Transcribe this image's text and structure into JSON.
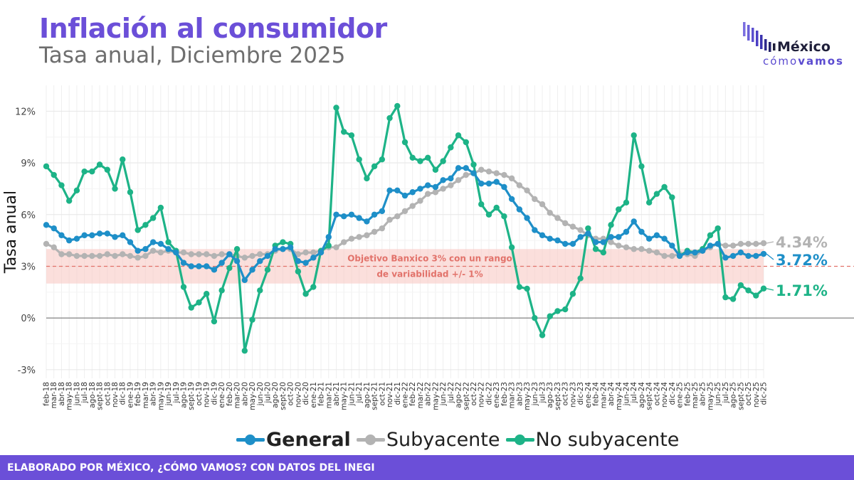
{
  "header": {
    "title": "Inflación al consumidor",
    "subtitle": "Tasa anual, Diciembre 2025"
  },
  "logo": {
    "word": "México",
    "sub_a": "cómo",
    "sub_b": "vamos",
    "color": "#6b4fd8"
  },
  "footer": {
    "text": "ELABORADO POR MÉXICO, ¿CÓMO VAMOS? CON DATOS DEL INEGI",
    "color": "#6b4fd8"
  },
  "chart_data": {
    "type": "line",
    "ylabel": "Tasa anual",
    "ylim": [
      -3.5,
      13.5
    ],
    "yticks": [
      -3,
      0,
      3,
      6,
      9,
      12
    ],
    "ytick_labels": [
      "-3%",
      "0%",
      "3%",
      "6%",
      "9%",
      "12%"
    ],
    "grid": true,
    "legend_position": "bottom",
    "target_band": {
      "low": 2,
      "high": 4,
      "center": 3,
      "label_line1": "Objetivo Banxico 3% con un rango",
      "label_line2": "de variabilidad +/- 1%",
      "color": "#f8c9c4",
      "line_color": "#e2726a"
    },
    "categories": [
      "feb-18",
      "mar-18",
      "abr-18",
      "may-18",
      "jun-18",
      "jul-18",
      "ago-18",
      "sept-18",
      "oct-18",
      "nov-18",
      "dic-18",
      "ene-19",
      "feb-19",
      "mar-19",
      "abr-19",
      "may-19",
      "jun-19",
      "jul-19",
      "ago-19",
      "sept-19",
      "oct-19",
      "nov-19",
      "dic-19",
      "ene-20",
      "feb-20",
      "mar-20",
      "abr-20",
      "may-20",
      "jun-20",
      "jul-20",
      "ago-20",
      "sept-20",
      "oct-20",
      "nov-20",
      "dic-20",
      "ene-21",
      "feb-21",
      "mar-21",
      "abr-21",
      "may-21",
      "jun-21",
      "jul-21",
      "ago-21",
      "sept-21",
      "oct-21",
      "nov-21",
      "dic-21",
      "ene-22",
      "feb-22",
      "mar-22",
      "abr-22",
      "may-22",
      "jun-22",
      "jul-22",
      "ago-22",
      "sept-22",
      "oct-22",
      "nov-22",
      "dic-22",
      "ene-23",
      "feb-23",
      "mar-23",
      "abr-23",
      "may-23",
      "jun-23",
      "jul-23",
      "ago-23",
      "sept-23",
      "oct-23",
      "nov-23",
      "dic-23",
      "ene-24",
      "feb-24",
      "mar-24",
      "abr-24",
      "may-24",
      "jun-24",
      "jul-24",
      "ago-24",
      "sept-24",
      "oct-24",
      "nov-24",
      "dic-24",
      "ene-25",
      "feb-25",
      "mar-25",
      "abr-25",
      "may-25",
      "jun-25",
      "jul-25",
      "ago-25",
      "sept-25",
      "oct-25",
      "nov-25",
      "dic-25"
    ],
    "series": [
      {
        "name": "Subyacente",
        "color": "#b3b3b3",
        "end_label": "4.34%",
        "values": [
          4.3,
          4.1,
          3.7,
          3.7,
          3.6,
          3.6,
          3.6,
          3.6,
          3.7,
          3.6,
          3.7,
          3.6,
          3.5,
          3.6,
          3.9,
          3.8,
          3.9,
          3.8,
          3.8,
          3.7,
          3.7,
          3.7,
          3.6,
          3.7,
          3.7,
          3.6,
          3.5,
          3.6,
          3.7,
          3.7,
          3.9,
          4.0,
          4.0,
          3.7,
          3.8,
          3.8,
          3.9,
          4.1,
          4.1,
          4.4,
          4.6,
          4.7,
          4.8,
          5.0,
          5.2,
          5.7,
          5.9,
          6.2,
          6.5,
          6.8,
          7.2,
          7.3,
          7.5,
          7.7,
          8.0,
          8.3,
          8.4,
          8.6,
          8.5,
          8.4,
          8.3,
          8.1,
          7.7,
          7.4,
          6.9,
          6.6,
          6.1,
          5.8,
          5.5,
          5.3,
          5.1,
          4.8,
          4.6,
          4.6,
          4.4,
          4.2,
          4.1,
          4.0,
          4.0,
          3.9,
          3.8,
          3.6,
          3.6,
          3.7,
          3.7,
          3.6,
          3.9,
          4.1,
          4.3,
          4.2,
          4.2,
          4.3,
          4.3,
          4.3,
          4.34
        ]
      },
      {
        "name": "No subyacente",
        "color": "#1db387",
        "end_label": "1.71%",
        "values": [
          8.8,
          8.3,
          7.7,
          6.8,
          7.4,
          8.5,
          8.5,
          8.9,
          8.6,
          7.5,
          9.2,
          7.3,
          5.1,
          5.4,
          5.8,
          6.4,
          4.4,
          3.9,
          1.8,
          0.6,
          0.9,
          1.4,
          -0.2,
          1.6,
          2.9,
          4.0,
          -1.9,
          -0.1,
          1.6,
          2.8,
          4.2,
          4.4,
          4.3,
          2.7,
          1.4,
          1.8,
          3.9,
          4.2,
          12.2,
          10.8,
          10.6,
          9.2,
          8.1,
          8.8,
          9.2,
          11.6,
          12.3,
          10.2,
          9.3,
          9.1,
          9.3,
          8.6,
          9.1,
          9.9,
          10.6,
          10.2,
          8.9,
          6.6,
          6.0,
          6.4,
          5.9,
          4.1,
          1.8,
          1.7,
          0.0,
          -1.0,
          0.1,
          0.4,
          0.5,
          1.4,
          2.3,
          5.2,
          4.0,
          3.8,
          5.4,
          6.3,
          6.7,
          10.6,
          8.8,
          6.7,
          7.2,
          7.6,
          7.0,
          3.6,
          3.9,
          3.8,
          4.0,
          4.8,
          5.2,
          1.2,
          1.1,
          1.9,
          1.6,
          1.3,
          1.71
        ]
      },
      {
        "name": "General",
        "color": "#1e8fc8",
        "end_label": "3.72%",
        "values": [
          5.4,
          5.2,
          4.8,
          4.5,
          4.6,
          4.8,
          4.8,
          4.9,
          4.9,
          4.7,
          4.8,
          4.4,
          3.9,
          4.0,
          4.4,
          4.3,
          4.0,
          3.8,
          3.2,
          3.0,
          3.0,
          3.0,
          2.8,
          3.2,
          3.7,
          3.3,
          2.2,
          2.8,
          3.3,
          3.6,
          4.0,
          4.0,
          4.1,
          3.3,
          3.2,
          3.5,
          3.8,
          4.7,
          6.0,
          5.9,
          6.0,
          5.8,
          5.6,
          6.0,
          6.2,
          7.4,
          7.4,
          7.1,
          7.3,
          7.5,
          7.7,
          7.6,
          8.0,
          8.1,
          8.7,
          8.7,
          8.4,
          7.8,
          7.8,
          7.9,
          7.6,
          6.9,
          6.3,
          5.8,
          5.1,
          4.8,
          4.6,
          4.5,
          4.3,
          4.3,
          4.7,
          4.9,
          4.4,
          4.4,
          4.7,
          4.7,
          5.0,
          5.6,
          5.0,
          4.6,
          4.8,
          4.6,
          4.2,
          3.6,
          3.8,
          3.8,
          3.9,
          4.2,
          4.3,
          3.5,
          3.6,
          3.8,
          3.6,
          3.6,
          3.72
        ]
      }
    ],
    "legend": [
      {
        "name": "General",
        "color": "#1e8fc8",
        "bold": true
      },
      {
        "name": "Subyacente",
        "color": "#b3b3b3",
        "bold": false
      },
      {
        "name": "No subyacente",
        "color": "#1db387",
        "bold": false
      }
    ]
  }
}
